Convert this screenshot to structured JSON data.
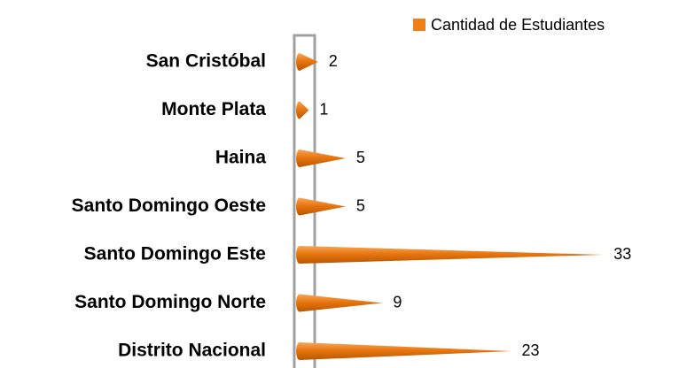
{
  "chart_data": {
    "type": "bar",
    "orientation": "horizontal",
    "categories": [
      "San Cristóbal",
      "Monte Plata",
      "Haina",
      "Santo Domingo Oeste",
      "Santo Domingo Este",
      "Santo Domingo Norte",
      "Distrito Nacional"
    ],
    "series": [
      {
        "name": "Cantidad de Estudiantes",
        "color": "#f07f1a",
        "values": [
          2,
          1,
          5,
          5,
          33,
          9,
          23
        ]
      }
    ],
    "xlim": [
      0,
      35
    ],
    "legend": "top-right"
  }
}
